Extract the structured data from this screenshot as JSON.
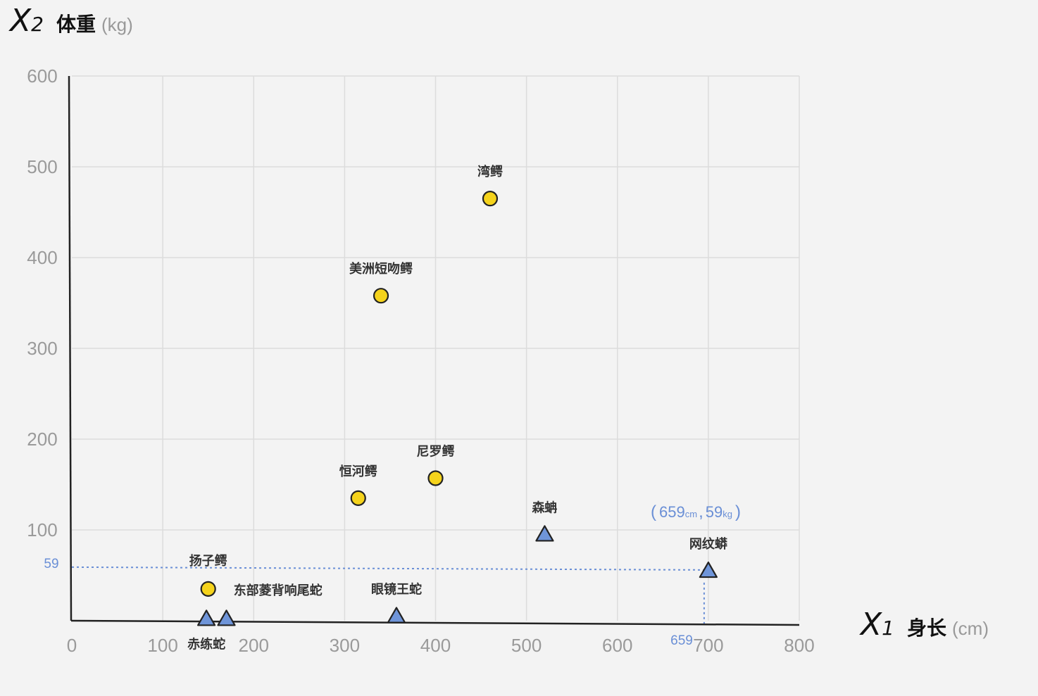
{
  "chart_data": {
    "type": "scatter",
    "xaxis": {
      "var": "X",
      "sub": "1",
      "name": "身长",
      "unit": "(cm)",
      "ticks": [
        "0",
        "100",
        "200",
        "300",
        "400",
        "500",
        "600",
        "700",
        "800"
      ],
      "range": [
        0,
        800
      ]
    },
    "yaxis": {
      "var": "X",
      "sub": "2",
      "name": "体重",
      "unit": "(kg)",
      "ticks": [
        "100",
        "200",
        "300",
        "400",
        "500",
        "600"
      ],
      "range": [
        0,
        600
      ]
    },
    "grid": true,
    "point_colors": {
      "circle": "#f5d31c",
      "triangle": "#6f95d9"
    },
    "points": [
      {
        "label": "湾鳄",
        "x": 460,
        "y": 465,
        "shape": "circle"
      },
      {
        "label": "美洲短吻鳄",
        "x": 340,
        "y": 358,
        "shape": "circle"
      },
      {
        "label": "尼罗鳄",
        "x": 400,
        "y": 157,
        "shape": "circle"
      },
      {
        "label": "恒河鳄",
        "x": 315,
        "y": 135,
        "shape": "circle"
      },
      {
        "label": "扬子鳄",
        "x": 150,
        "y": 35,
        "shape": "circle"
      },
      {
        "label": "森蚺",
        "x": 520,
        "y": 95,
        "shape": "triangle"
      },
      {
        "label": "网纹蟒",
        "x": 700,
        "y": 55,
        "shape": "triangle"
      },
      {
        "label": "东部菱背响尾蛇",
        "x": 170,
        "y": 2,
        "shape": "triangle"
      },
      {
        "label": "赤练蛇",
        "x": 148,
        "y": 2,
        "shape": "triangle"
      },
      {
        "label": "眼镜王蛇",
        "x": 357,
        "y": 5,
        "shape": "triangle"
      }
    ],
    "highlight": {
      "x_text": "659",
      "y_text": "59",
      "x_unit": "cm",
      "y_unit": "kg",
      "open": "(",
      "comma": ",",
      "close": ")",
      "color": "#6a8fd6"
    }
  }
}
